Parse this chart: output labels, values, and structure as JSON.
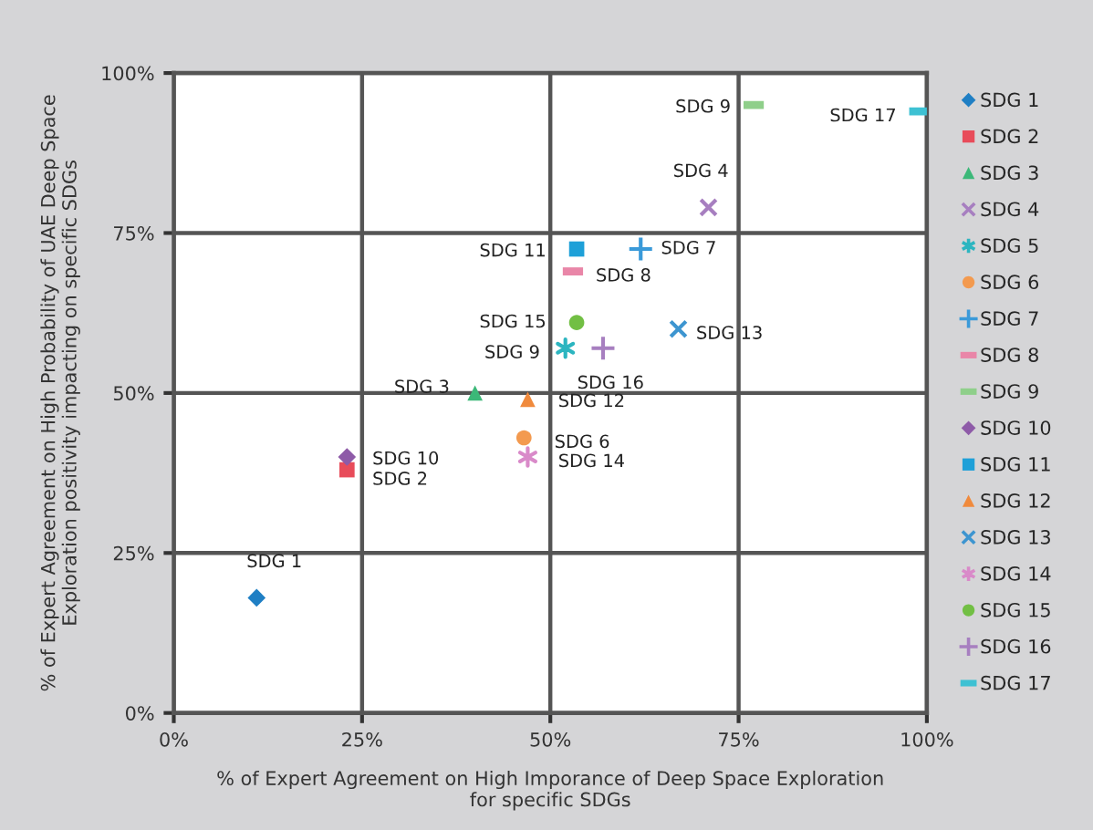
{
  "chart_data": {
    "type": "scatter",
    "xlabel": "% of Expert Agreement on High Imporance of Deep Space Exploration\nfor specific SDGs",
    "ylabel": "% of Expert Agreement on High Probability of UAE Deep Space\nExploration positivity impacting on specific SDGs",
    "xlim": [
      0,
      100
    ],
    "ylim": [
      0,
      100
    ],
    "xticks": [
      {
        "value": 0,
        "label": "0%"
      },
      {
        "value": 25,
        "label": "25%"
      },
      {
        "value": 50,
        "label": "50%"
      },
      {
        "value": 75,
        "label": "75%"
      },
      {
        "value": 100,
        "label": "100%"
      }
    ],
    "yticks": [
      {
        "value": 0,
        "label": "0%"
      },
      {
        "value": 25,
        "label": "25%"
      },
      {
        "value": 50,
        "label": "50%"
      },
      {
        "value": 75,
        "label": "75%"
      },
      {
        "value": 100,
        "label": "100%"
      }
    ],
    "grid": true,
    "legend": "right",
    "series": [
      {
        "name": "SDG 1",
        "color": "#1f7fc4",
        "x": [
          11
        ],
        "values": [
          18
        ]
      },
      {
        "name": "SDG 2",
        "color": "#e84c5a",
        "x": [
          23
        ],
        "values": [
          38
        ]
      },
      {
        "name": "SDG 3",
        "color": "#3cb878",
        "x": [
          40
        ],
        "values": [
          50
        ]
      },
      {
        "name": "SDG 4",
        "color": "#a77fc0",
        "x": [
          71
        ],
        "values": [
          79
        ]
      },
      {
        "name": "SDG 5",
        "color": "#2cb5c0",
        "x": [
          52
        ],
        "values": [
          57
        ]
      },
      {
        "name": "SDG 6",
        "color": "#f39a4f",
        "x": [
          46.5
        ],
        "values": [
          43
        ]
      },
      {
        "name": "SDG 7",
        "color": "#3a9ad9",
        "x": [
          62
        ],
        "values": [
          72.5
        ]
      },
      {
        "name": "SDG 8",
        "color": "#e986a8",
        "x": [
          53
        ],
        "values": [
          69
        ]
      },
      {
        "name": "SDG 9",
        "color": "#8fcf8a",
        "x": [
          77
        ],
        "values": [
          95
        ]
      },
      {
        "name": "SDG 10",
        "color": "#8e5ba8",
        "x": [
          23
        ],
        "values": [
          40
        ]
      },
      {
        "name": "SDG 11",
        "color": "#1ea0d8",
        "x": [
          53.5
        ],
        "values": [
          72.5
        ]
      },
      {
        "name": "SDG 12",
        "color": "#f08a3c",
        "x": [
          47
        ],
        "values": [
          49
        ]
      },
      {
        "name": "SDG 13",
        "color": "#3d95d0",
        "x": [
          67
        ],
        "values": [
          60
        ]
      },
      {
        "name": "SDG 14",
        "color": "#d98ac9",
        "x": [
          47
        ],
        "values": [
          40
        ]
      },
      {
        "name": "SDG 15",
        "color": "#72bf44",
        "x": [
          53.5
        ],
        "values": [
          61
        ]
      },
      {
        "name": "SDG 16",
        "color": "#a77fc0",
        "x": [
          57
        ],
        "values": [
          57
        ]
      },
      {
        "name": "SDG 17",
        "color": "#3ec1d3",
        "x": [
          99
        ],
        "values": [
          94
        ]
      }
    ],
    "annotations": [
      {
        "text": "SDG 1",
        "x": 11,
        "y": 18
      },
      {
        "text": "SDG 2",
        "x": 23,
        "y": 38
      },
      {
        "text": "SDG 3",
        "x": 40,
        "y": 50
      },
      {
        "text": "SDG 4",
        "x": 71,
        "y": 79
      },
      {
        "text": "SDG 9",
        "x": 52,
        "y": 57
      },
      {
        "text": "SDG 6",
        "x": 46.5,
        "y": 43
      },
      {
        "text": "SDG 7",
        "x": 62,
        "y": 72.5
      },
      {
        "text": "SDG 8",
        "x": 53,
        "y": 69
      },
      {
        "text": "SDG 9",
        "x": 77,
        "y": 95
      },
      {
        "text": "SDG 10",
        "x": 23,
        "y": 40
      },
      {
        "text": "SDG 11",
        "x": 53.5,
        "y": 72.5
      },
      {
        "text": "SDG 12",
        "x": 47,
        "y": 49
      },
      {
        "text": "SDG 13",
        "x": 67,
        "y": 60
      },
      {
        "text": "SDG 14",
        "x": 47,
        "y": 40
      },
      {
        "text": "SDG 15",
        "x": 53.5,
        "y": 61
      },
      {
        "text": "SDG 16",
        "x": 57,
        "y": 57
      },
      {
        "text": "SDG 17",
        "x": 99,
        "y": 94
      }
    ]
  }
}
